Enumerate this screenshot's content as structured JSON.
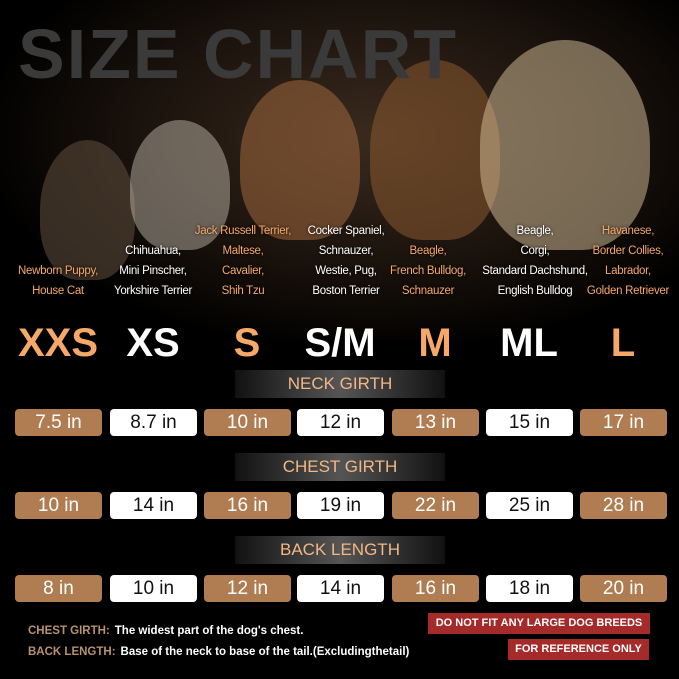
{
  "title": "SIZE CHART",
  "colors": {
    "accent": "#f5a868",
    "brown_box": "#b07d52",
    "warning": "#a52a2a"
  },
  "columns": [
    {
      "size": "XXS",
      "breeds": [
        "Newborn Puppy,",
        "House Cat"
      ],
      "neck": "7.5 in",
      "chest": "10 in",
      "back": "8 in"
    },
    {
      "size": "XS",
      "breeds": [
        "Chihuahua,",
        "Mini Pinscher,",
        "Yorkshire Terrier"
      ],
      "neck": "8.7 in",
      "chest": "14 in",
      "back": "10 in"
    },
    {
      "size": "S",
      "breeds": [
        "Jack Russell Terrier,",
        "Maltese,",
        "Cavalier,",
        "Shih Tzu"
      ],
      "neck": "10 in",
      "chest": "16 in",
      "back": "12 in"
    },
    {
      "size": "S/M",
      "breeds": [
        "Cocker Spaniel,",
        "Schnauzer,",
        "Westie, Pug,",
        "Boston Terrier"
      ],
      "neck": "12 in",
      "chest": "19 in",
      "back": "14 in"
    },
    {
      "size": "M",
      "breeds": [
        "Beagle,",
        "French Bulldog,",
        "Schnauzer"
      ],
      "neck": "13 in",
      "chest": "22 in",
      "back": "16 in"
    },
    {
      "size": "ML",
      "breeds": [
        "Beagle,",
        "Corgi,",
        "Standard Dachshund,",
        "English Bulldog"
      ],
      "neck": "15 in",
      "chest": "25 in",
      "back": "18 in"
    },
    {
      "size": "L",
      "breeds": [
        "Havanese,",
        "Border Collies,",
        "Labrador,",
        "Golden Retriever"
      ],
      "neck": "17 in",
      "chest": "28 in",
      "back": "20 in"
    }
  ],
  "headers": {
    "neck": "NECK GIRTH",
    "chest": "CHEST GIRTH",
    "back": "BACK LENGTH"
  },
  "notes": [
    {
      "key": "CHEST GIRTH:",
      "text": "The widest part of the dog's chest."
    },
    {
      "key": "BACK LENGTH:",
      "text": "Base of the neck to base of the tail.(Excludingthetail)"
    }
  ],
  "warnings": [
    "DO NOT FIT ANY LARGE DOG BREEDS",
    "FOR REFERENCE ONLY"
  ]
}
